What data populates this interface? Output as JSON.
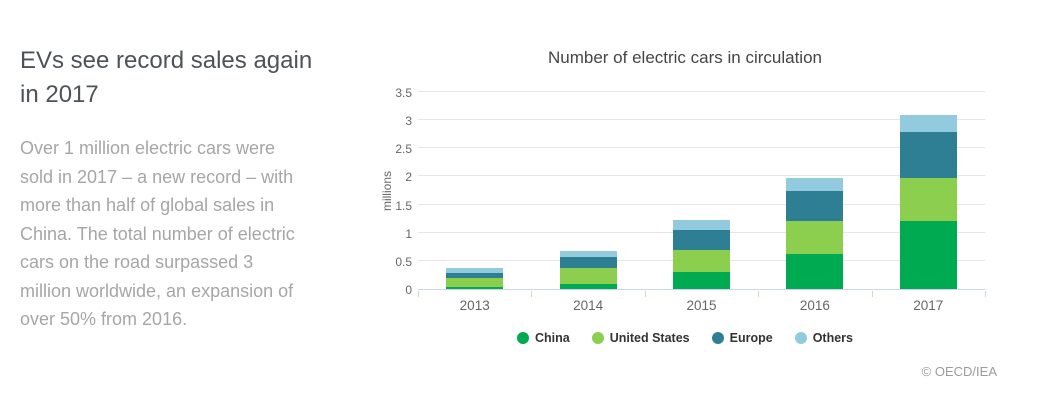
{
  "page": {
    "heading": "EVs see record sales again\nin 2017",
    "body_text": "Over 1 million electric cars were\nsold in 2017 – a new record – with\nmore than half of global sales in\nChina. The total number of electric\ncars on the road surpassed 3\nmillion worldwide, an expansion of\nover 50% from 2016.",
    "copyright": "© OECD/IEA"
  },
  "chart_data": {
    "type": "bar",
    "stacked": true,
    "title": "Number of electric cars in circulation",
    "xlabel": "",
    "ylabel": "millions",
    "categories": [
      "2013",
      "2014",
      "2015",
      "2016",
      "2017"
    ],
    "series": [
      {
        "name": "China",
        "color": "#00AA50",
        "values": [
          0.03,
          0.09,
          0.31,
          0.63,
          1.21
        ]
      },
      {
        "name": "United States",
        "color": "#8CCE4E",
        "values": [
          0.17,
          0.29,
          0.39,
          0.57,
          0.76
        ]
      },
      {
        "name": "Europe",
        "color": "#2E7F94",
        "values": [
          0.09,
          0.19,
          0.34,
          0.55,
          0.82
        ]
      },
      {
        "name": "Others",
        "color": "#92CBDE",
        "values": [
          0.08,
          0.11,
          0.18,
          0.22,
          0.3
        ]
      }
    ],
    "stack_totals": [
      0.37,
      0.68,
      1.22,
      1.97,
      3.09
    ],
    "ylim": [
      0,
      3.5
    ],
    "yticks": [
      0,
      0.5,
      1,
      1.5,
      2,
      2.5,
      3,
      3.5
    ],
    "grid": true,
    "legend_position": "bottom-center"
  },
  "style": {
    "grid_color": "#e6e6e6",
    "axis_color": "#ccd6eb",
    "tick_label_color": "#666666",
    "heading_color": "#4d5359",
    "body_color": "#a6a6a6"
  }
}
